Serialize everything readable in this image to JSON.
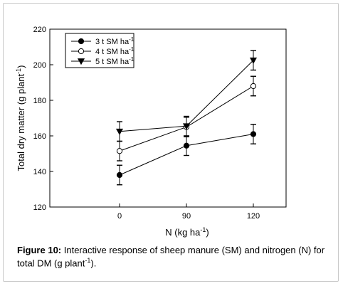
{
  "chart_data": {
    "type": "line",
    "x": [
      0,
      90,
      120
    ],
    "x_tick_labels": [
      "0",
      "90",
      "120"
    ],
    "xlabel": "N (kg ha",
    "xlabel_sup": "-1",
    "xlabel_end": ")",
    "ylabel": "Total dry matter (g plant",
    "ylabel_sup": "-1",
    "ylabel_end": ")",
    "ylim": [
      120,
      220
    ],
    "y_ticks": [
      120,
      140,
      160,
      180,
      200,
      220
    ],
    "series": [
      {
        "name": "3 t SM ha",
        "name_sup": "-1",
        "marker": "filled-circle",
        "values": [
          138,
          154.5,
          161
        ],
        "errors": [
          5.5,
          5.5,
          5.5
        ]
      },
      {
        "name": "4 t SM ha",
        "name_sup": "-1",
        "marker": "open-circle",
        "values": [
          151.5,
          165,
          188
        ],
        "errors": [
          5.5,
          5.5,
          5.5
        ]
      },
      {
        "name": "5 t SM ha",
        "name_sup": "-1",
        "marker": "filled-triangle-down",
        "values": [
          162.5,
          165.5,
          202.5
        ],
        "errors": [
          5.5,
          5.5,
          5.5
        ]
      }
    ],
    "legend_position": "top-left",
    "grid": false
  },
  "caption": {
    "label": "Figure 10:",
    "text": " Interactive response of sheep manure (SM) and nitrogen (N) for total DM (g plant",
    "sup": "-1",
    "end": ")."
  }
}
